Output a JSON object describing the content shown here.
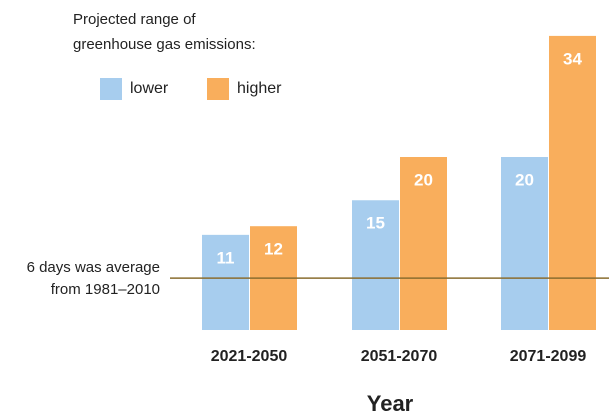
{
  "chart_data": {
    "type": "bar",
    "legend_title": [
      "Projected range of",
      "greenhouse gas emissions:"
    ],
    "categories": [
      "2021-2050",
      "2051-2070",
      "2071-2099"
    ],
    "series": [
      {
        "name": "lower",
        "color": "#a7cdee",
        "values": [
          11,
          15,
          20
        ]
      },
      {
        "name": "higher",
        "color": "#f9ae5c",
        "values": [
          12,
          20,
          34
        ]
      }
    ],
    "reference": {
      "value": 6,
      "color": "#8a6d2f",
      "label": [
        "6 days was average",
        "from 1981–2010"
      ]
    },
    "x_label": "Year"
  }
}
